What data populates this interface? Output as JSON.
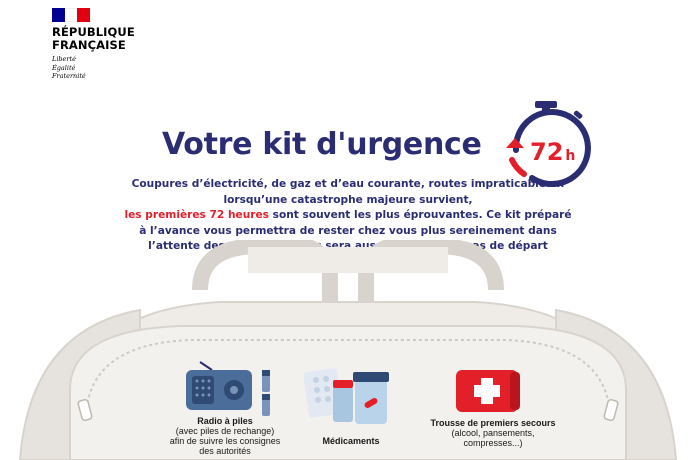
{
  "header": {
    "logo_line1": "RÉPUBLIQUE",
    "logo_line2": "FRANÇAISE",
    "motto": [
      "Liberté",
      "Égalité",
      "Fraternité"
    ],
    "flag_colors": [
      "#000091",
      "#ffffff",
      "#e1000f"
    ]
  },
  "title": "Votre kit d'urgence",
  "timer": {
    "value": "72",
    "unit": "h",
    "icon": "stopwatch-icon",
    "ring_color": "#2a2d72",
    "text_color": "#e3202a"
  },
  "intro": {
    "part1": "Coupures d’électricité, de gaz et d’eau courante, routes impraticables... lorsqu’une catastrophe majeure survient,",
    "highlight": "les premières 72 heures",
    "part2": "sont souvent les plus éprouvantes. Ce kit préparé à l’avance vous permettra de rester chez vous plus sereinement dans l’attente des secours. Il vous sera aussi très utile en cas de départ précipité."
  },
  "items": [
    {
      "icon": "radio-icon",
      "title": "Radio à piles",
      "lines": [
        "(avec piles de rechange)",
        "afin de suivre les consignes",
        "des autorités"
      ]
    },
    {
      "icon": "medicine-icon",
      "title": "Médicaments",
      "lines": []
    },
    {
      "icon": "first-aid-kit-icon",
      "title": "Trousse de premiers secours",
      "lines": [
        "(alcool, pansements,",
        "compresses...)"
      ]
    }
  ],
  "colors": {
    "primary_blue": "#2a2d72",
    "accent_red": "#e3202a",
    "bag_fill": "#efece8",
    "bag_stroke": "#d8d3cc"
  }
}
